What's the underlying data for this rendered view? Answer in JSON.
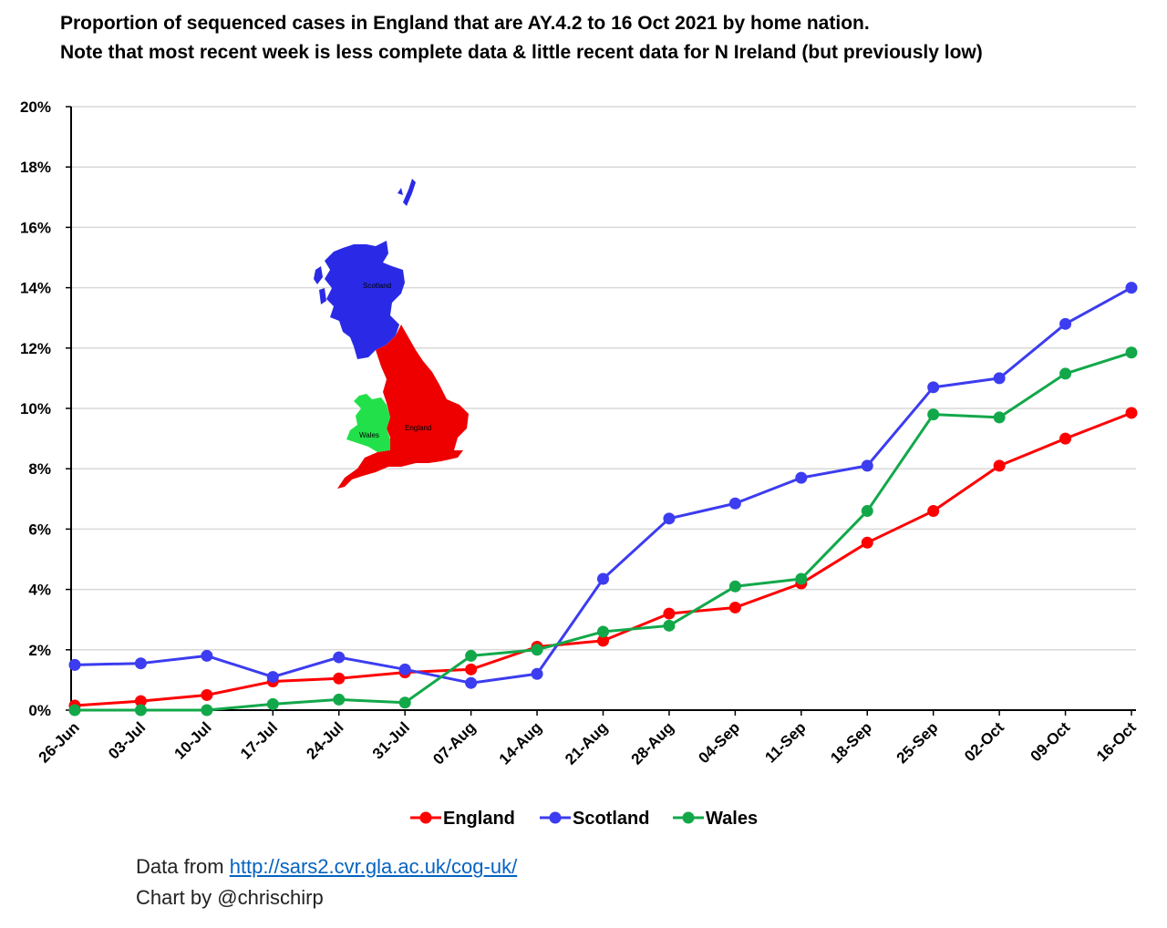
{
  "title": {
    "line1": "Proportion of sequenced cases in England that are AY.4.2 to 16 Oct 2021 by home nation.",
    "line2": "Note that most recent week is less complete data & little recent data for N Ireland (but previously low)"
  },
  "map_labels": {
    "scotland": "Scotland",
    "england": "England",
    "wales": "Wales"
  },
  "footer": {
    "data_prefix": "Data from ",
    "link_text": "http://sars2.cvr.gla.ac.uk/cog-uk/",
    "credit": "Chart by @chrischirp"
  },
  "chart_data": {
    "type": "line",
    "title": "Proportion of sequenced cases in England that are AY.4.2 to 16 Oct 2021 by home nation.",
    "categories": [
      "26-Jun",
      "03-Jul",
      "10-Jul",
      "17-Jul",
      "24-Jul",
      "31-Jul",
      "07-Aug",
      "14-Aug",
      "21-Aug",
      "28-Aug",
      "04-Sep",
      "11-Sep",
      "18-Sep",
      "25-Sep",
      "02-Oct",
      "09-Oct",
      "16-Oct"
    ],
    "yticks": [
      "0%",
      "2%",
      "4%",
      "6%",
      "8%",
      "10%",
      "12%",
      "14%",
      "16%",
      "18%",
      "20%"
    ],
    "ylim": [
      0,
      20
    ],
    "grid": true,
    "legend": "bottom",
    "series": [
      {
        "name": "England",
        "color": "#ff0000",
        "values": [
          0.15,
          0.3,
          0.5,
          0.95,
          1.05,
          1.25,
          1.35,
          2.1,
          2.3,
          3.2,
          3.4,
          4.2,
          5.55,
          6.6,
          8.1,
          9.0,
          9.85
        ]
      },
      {
        "name": "Scotland",
        "color": "#3c3cf0",
        "values": [
          1.5,
          1.55,
          1.8,
          1.1,
          1.75,
          1.35,
          0.9,
          1.2,
          4.35,
          6.35,
          6.85,
          7.7,
          8.1,
          10.7,
          11.0,
          12.8,
          14.0
        ]
      },
      {
        "name": "Wales",
        "color": "#12a84a",
        "values": [
          0.0,
          0.0,
          0.0,
          0.2,
          0.35,
          0.25,
          1.8,
          2.0,
          2.6,
          2.8,
          4.1,
          4.35,
          6.6,
          9.8,
          9.7,
          11.15,
          11.85
        ]
      }
    ]
  }
}
